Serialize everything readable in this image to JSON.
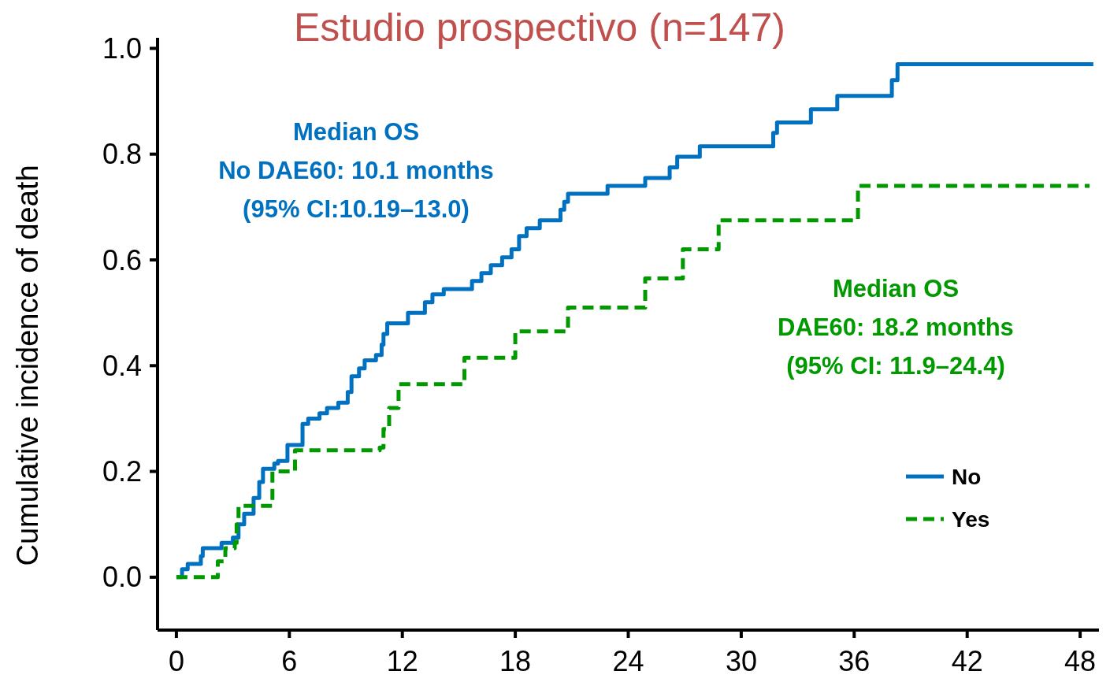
{
  "chart_data": {
    "type": "step",
    "title": "Estudio prospectivo (n=147)",
    "ylabel": "Cumulative incidence of death",
    "annotations": [
      "Median OS\nNo DAE60: 10.1 months\n(95% CI:10.19–13.0)",
      "Median OS\nDAE60: 18.2 months\n(95% CI: 11.9–24.4)"
    ],
    "xlim": [
      -1,
      49
    ],
    "xticks": [
      0,
      6,
      12,
      18,
      24,
      30,
      36,
      42,
      48
    ],
    "ylim": [
      -0.1,
      1.02
    ],
    "yticks": [
      {
        "value": 0,
        "label": "0.0"
      },
      {
        "value": 0.2,
        "label": "0.2"
      },
      {
        "value": 0.4,
        "label": "0.4"
      },
      {
        "value": 0.6,
        "label": "0.6"
      },
      {
        "value": 0.8,
        "label": "0.8"
      },
      {
        "value": 1,
        "label": "1.0"
      }
    ],
    "legend": "bottom right",
    "grid": false,
    "series": [
      {
        "name": "No",
        "color": "#0070c0",
        "line_style": "solid",
        "x": [
          0,
          0.3,
          0.6,
          1.3,
          1.4,
          2.4,
          3.0,
          3.3,
          3.6,
          4.1,
          4.4,
          4.6,
          5.2,
          5.4,
          5.9,
          6.7,
          7.0,
          7.6,
          8.0,
          8.6,
          9.1,
          9.3,
          9.7,
          10.0,
          10.6,
          10.9,
          11.0,
          11.2,
          12.3,
          13.2,
          13.6,
          14.2,
          15.7,
          16.2,
          16.7,
          17.3,
          17.8,
          18.2,
          18.6,
          19.3,
          20.4,
          20.6,
          20.8,
          22.9,
          24.9,
          26.2,
          26.6,
          27.8,
          31.7,
          31.9,
          33.7,
          35.1,
          38.0,
          38.3,
          48.7
        ],
        "values": [
          0,
          0.015,
          0.025,
          0.04,
          0.055,
          0.065,
          0.075,
          0.1,
          0.12,
          0.15,
          0.18,
          0.205,
          0.215,
          0.22,
          0.25,
          0.29,
          0.3,
          0.31,
          0.32,
          0.33,
          0.35,
          0.38,
          0.395,
          0.41,
          0.42,
          0.44,
          0.46,
          0.48,
          0.5,
          0.52,
          0.535,
          0.545,
          0.56,
          0.575,
          0.59,
          0.605,
          0.62,
          0.645,
          0.66,
          0.675,
          0.695,
          0.71,
          0.725,
          0.74,
          0.755,
          0.775,
          0.795,
          0.815,
          0.84,
          0.86,
          0.885,
          0.91,
          0.94,
          0.97,
          0.97
        ]
      },
      {
        "name": "Yes",
        "color": "#009900",
        "line_style": "dashed",
        "x": [
          0,
          2.2,
          2.6,
          3.1,
          3.2,
          3.3,
          5.1,
          6.3,
          10.8,
          11.0,
          11.3,
          11.8,
          15.3,
          18.0,
          20.8,
          24.9,
          26.9,
          28.8,
          36.2,
          48.5
        ],
        "values": [
          0,
          0.03,
          0.055,
          0.065,
          0.1,
          0.135,
          0.2,
          0.24,
          0.245,
          0.28,
          0.32,
          0.365,
          0.415,
          0.465,
          0.51,
          0.565,
          0.62,
          0.675,
          0.74,
          0.74
        ]
      }
    ]
  }
}
